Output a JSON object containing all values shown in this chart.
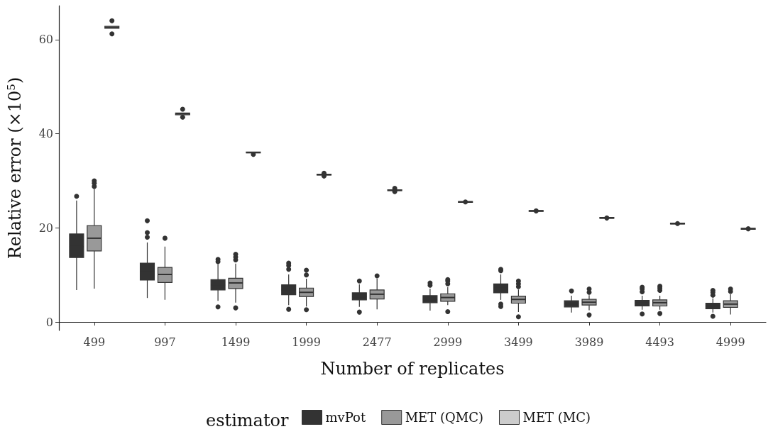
{
  "chart_data": {
    "type": "box",
    "xlabel": "Number of replicates",
    "ylabel": "Relative error (×10$^{5}$)",
    "legend_title": "estimator",
    "categories": [
      "499",
      "997",
      "1499",
      "1999",
      "2477",
      "2999",
      "3499",
      "3989",
      "4493",
      "4999"
    ],
    "ylim": [
      -1.8,
      67.2
    ],
    "yticks": [
      0,
      20,
      40,
      60
    ],
    "grid": false,
    "legend": "bottom",
    "series": [
      {
        "name": "mvPot",
        "color": "#333333",
        "boxes": [
          {
            "low": 6.8,
            "q1": 13.7,
            "median": 16.0,
            "q3": 18.7,
            "high": 25.8,
            "outliers": [
              26.7
            ]
          },
          {
            "low": 5.1,
            "q1": 8.9,
            "median": 10.7,
            "q3": 12.5,
            "high": 16.9,
            "outliers": [
              18.0,
              19.0,
              21.5
            ]
          },
          {
            "low": 4.5,
            "q1": 6.8,
            "median": 7.9,
            "q3": 9.0,
            "high": 12.2,
            "outliers": [
              12.8,
              13.3,
              3.2
            ]
          },
          {
            "low": 3.6,
            "q1": 5.8,
            "median": 6.8,
            "q3": 7.9,
            "high": 10.1,
            "outliers": [
              11.2,
              12.0,
              12.5,
              2.7
            ]
          },
          {
            "low": 3.2,
            "q1": 4.7,
            "median": 5.4,
            "q3": 6.2,
            "high": 8.0,
            "outliers": [
              8.7,
              2.1
            ]
          },
          {
            "low": 2.4,
            "q1": 4.1,
            "median": 4.8,
            "q3": 5.6,
            "high": 7.1,
            "outliers": [
              7.8,
              8.3
            ]
          },
          {
            "low": 4.7,
            "q1": 6.2,
            "median": 7.2,
            "q3": 8.1,
            "high": 10.1,
            "outliers": [
              10.9,
              11.2,
              3.3,
              3.8
            ]
          },
          {
            "low": 2.0,
            "q1": 3.2,
            "median": 3.9,
            "q3": 4.5,
            "high": 5.6,
            "outliers": [
              6.6
            ]
          },
          {
            "low": 2.6,
            "q1": 3.4,
            "median": 4.0,
            "q3": 4.6,
            "high": 5.6,
            "outliers": [
              6.4,
              7.0,
              7.4,
              1.7
            ]
          },
          {
            "low": 2.0,
            "q1": 2.8,
            "median": 3.4,
            "q3": 4.0,
            "high": 5.0,
            "outliers": [
              5.7,
              6.3,
              6.7,
              1.2
            ]
          }
        ]
      },
      {
        "name": "MET (QMC)",
        "color": "#999999",
        "boxes": [
          {
            "low": 7.1,
            "q1": 15.1,
            "median": 17.8,
            "q3": 20.5,
            "high": 28.2,
            "outliers": [
              28.8,
              29.5,
              30.0
            ]
          },
          {
            "low": 4.7,
            "q1": 8.4,
            "median": 10.1,
            "q3": 11.6,
            "high": 16.0,
            "outliers": [
              17.8
            ]
          },
          {
            "low": 4.1,
            "q1": 7.1,
            "median": 8.3,
            "q3": 9.3,
            "high": 12.4,
            "outliers": [
              13.2,
              13.8,
              14.4,
              3.0
            ]
          },
          {
            "low": 3.3,
            "q1": 5.4,
            "median": 6.3,
            "q3": 7.2,
            "high": 9.2,
            "outliers": [
              10.0,
              11.0,
              2.6
            ]
          },
          {
            "low": 2.7,
            "q1": 4.9,
            "median": 5.9,
            "q3": 6.8,
            "high": 9.2,
            "outliers": [
              9.8
            ]
          },
          {
            "low": 3.6,
            "q1": 4.4,
            "median": 5.2,
            "q3": 6.0,
            "high": 7.4,
            "outliers": [
              8.1,
              8.7,
              9.0,
              2.2
            ]
          },
          {
            "low": 2.1,
            "q1": 4.0,
            "median": 4.8,
            "q3": 5.5,
            "high": 6.9,
            "outliers": [
              7.5,
              8.1,
              8.7,
              1.1
            ]
          },
          {
            "low": 2.5,
            "q1": 3.6,
            "median": 4.2,
            "q3": 4.8,
            "high": 5.7,
            "outliers": [
              6.3,
              7.0,
              1.5
            ]
          },
          {
            "low": 2.6,
            "q1": 3.4,
            "median": 4.1,
            "q3": 4.7,
            "high": 5.6,
            "outliers": [
              6.7,
              7.2,
              7.6,
              1.8
            ]
          },
          {
            "low": 1.6,
            "q1": 3.1,
            "median": 3.8,
            "q3": 4.5,
            "high": 5.9,
            "outliers": [
              6.5,
              7.0
            ]
          }
        ]
      },
      {
        "name": "MET (MC)",
        "color": "#cccccc",
        "boxes": [
          {
            "low": 62.2,
            "q1": 62.4,
            "median": 62.6,
            "q3": 62.8,
            "high": 63.0,
            "outliers": [
              64.0,
              61.2
            ]
          },
          {
            "low": 43.9,
            "q1": 44.0,
            "median": 44.2,
            "q3": 44.4,
            "high": 44.6,
            "outliers": [
              45.2,
              43.5
            ]
          },
          {
            "low": 35.8,
            "q1": 35.9,
            "median": 36.0,
            "q3": 36.1,
            "high": 36.2,
            "outliers": [
              35.6
            ]
          },
          {
            "low": 31.1,
            "q1": 31.2,
            "median": 31.3,
            "q3": 31.4,
            "high": 31.5,
            "outliers": [
              31.0,
              31.6
            ]
          },
          {
            "low": 27.8,
            "q1": 27.9,
            "median": 28.0,
            "q3": 28.1,
            "high": 28.2,
            "outliers": [
              28.4,
              27.7
            ]
          },
          {
            "low": 25.3,
            "q1": 25.4,
            "median": 25.5,
            "q3": 25.6,
            "high": 25.7,
            "outliers": [
              25.5
            ]
          },
          {
            "low": 23.4,
            "q1": 23.5,
            "median": 23.6,
            "q3": 23.7,
            "high": 23.8,
            "outliers": [
              23.6
            ]
          },
          {
            "low": 21.9,
            "q1": 22.0,
            "median": 22.1,
            "q3": 22.2,
            "high": 22.3,
            "outliers": [
              22.1
            ]
          },
          {
            "low": 20.7,
            "q1": 20.8,
            "median": 20.9,
            "q3": 21.0,
            "high": 21.1,
            "outliers": [
              20.9
            ]
          },
          {
            "low": 19.6,
            "q1": 19.7,
            "median": 19.8,
            "q3": 19.9,
            "high": 20.0,
            "outliers": [
              19.8
            ]
          }
        ]
      }
    ]
  }
}
